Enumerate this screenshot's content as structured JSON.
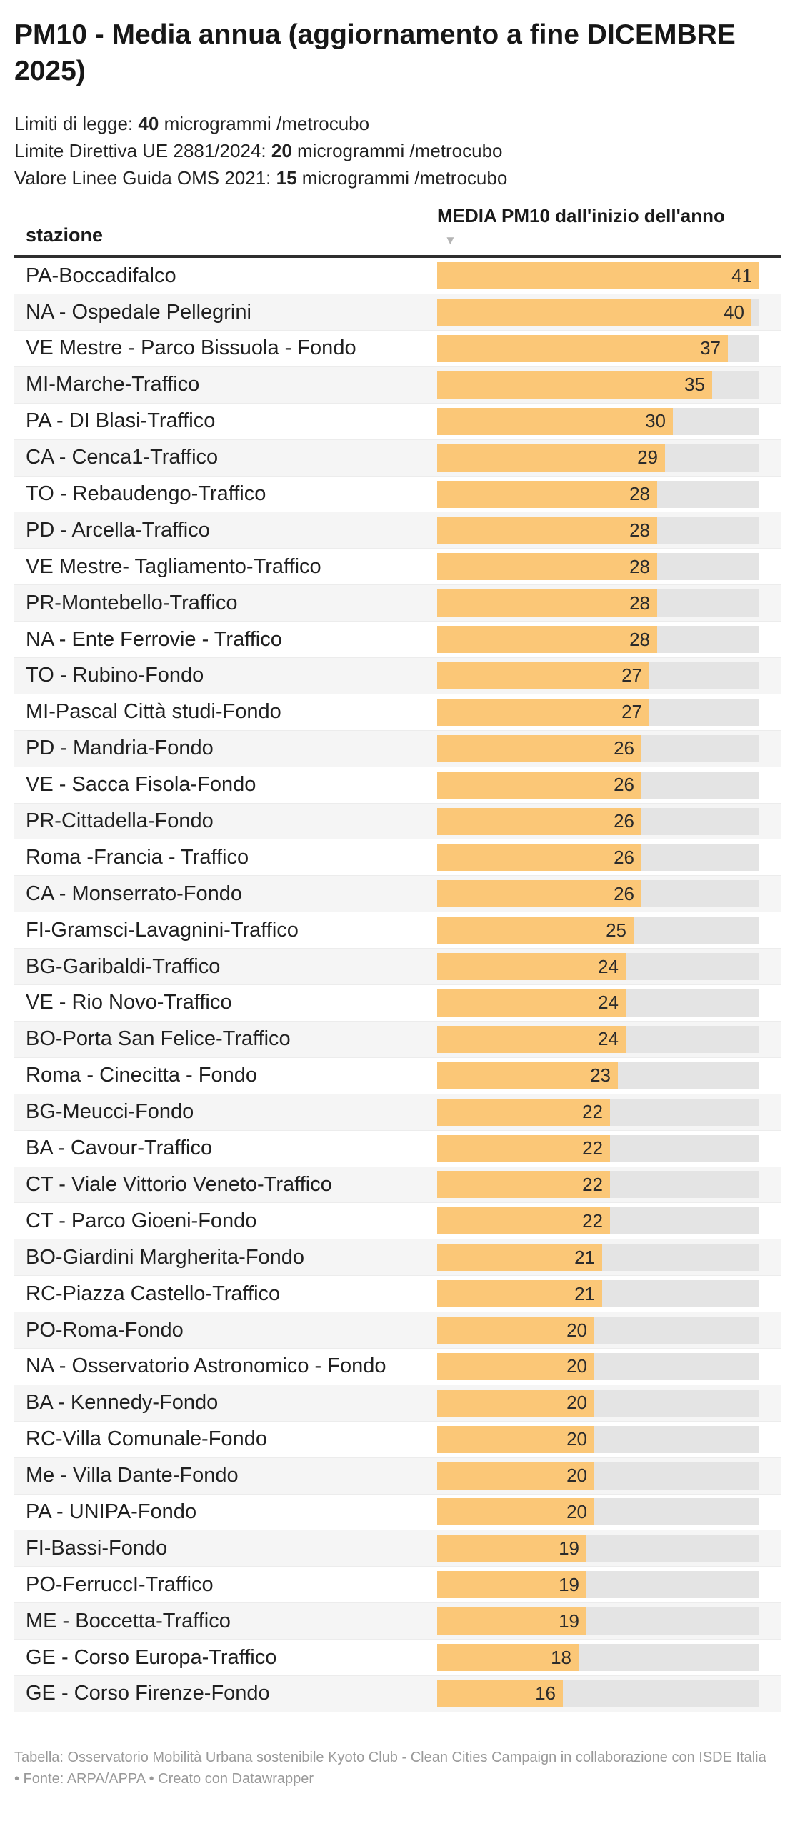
{
  "header": {
    "title": "PM10 - Media annua (aggiornamento a fine DICEMBRE 2025)",
    "description_lines": [
      {
        "prefix": "Limiti di legge: ",
        "bold": "40",
        "suffix": " microgrammi /metrocubo"
      },
      {
        "prefix": "Limite Direttiva UE 2881/2024: ",
        "bold": "20",
        "suffix": " microgrammi /metrocubo"
      },
      {
        "prefix": "Valore Linee Guida OMS 2021: ",
        "bold": "15",
        "suffix": " microgrammi /metrocubo"
      }
    ]
  },
  "table": {
    "station_column_label": "stazione",
    "value_column_label": "MEDIA PM10 dall'inizio dell'anno",
    "sort_icon": "▼"
  },
  "chart_data": {
    "type": "bar",
    "title": "PM10 - Media annua (aggiornamento a fine DICEMBRE 2025)",
    "xlabel": "MEDIA PM10 dall'inizio dell'anno",
    "ylabel": "stazione",
    "xlim": [
      0,
      41
    ],
    "xmax": 41,
    "bar_color": "#fbc777",
    "track_color": "#e4e4e4",
    "grid": false,
    "legend": false,
    "categories": [
      "PA-Boccadifalco",
      "NA - Ospedale Pellegrini",
      "VE Mestre - Parco Bissuola - Fondo",
      "MI-Marche-Traffico",
      "PA - DI Blasi-Traffico",
      "CA - Cenca1-Traffico",
      "TO - Rebaudengo-Traffico",
      "PD - Arcella-Traffico",
      "VE Mestre- Tagliamento-Traffico",
      "PR-Montebello-Traffico",
      "NA - Ente Ferrovie - Traffico",
      "TO - Rubino-Fondo",
      "MI-Pascal Città studi-Fondo",
      "PD - Mandria-Fondo",
      "VE - Sacca Fisola-Fondo",
      "PR-Cittadella-Fondo",
      "Roma -Francia - Traffico",
      "CA - Monserrato-Fondo",
      "FI-Gramsci-Lavagnini-Traffico",
      "BG-Garibaldi-Traffico",
      "VE - Rio Novo-Traffico",
      "BO-Porta San Felice-Traffico",
      "Roma - Cinecitta - Fondo",
      "BG-Meucci-Fondo",
      "BA - Cavour-Traffico",
      "CT - Viale Vittorio Veneto-Traffico",
      "CT - Parco Gioeni-Fondo",
      "BO-Giardini Margherita-Fondo",
      "RC-Piazza Castello-Traffico",
      "PO-Roma-Fondo",
      "NA - Osservatorio Astronomico - Fondo",
      "BA - Kennedy-Fondo",
      "RC-Villa Comunale-Fondo",
      "Me - Villa Dante-Fondo",
      "PA - UNIPA-Fondo",
      "FI-Bassi-Fondo",
      "PO-FerruccI-Traffico",
      "ME - Boccetta-Traffico",
      "GE - Corso Europa-Traffico",
      "GE - Corso Firenze-Fondo"
    ],
    "values": [
      41,
      40,
      37,
      35,
      30,
      29,
      28,
      28,
      28,
      28,
      28,
      27,
      27,
      26,
      26,
      26,
      26,
      26,
      25,
      24,
      24,
      24,
      23,
      22,
      22,
      22,
      22,
      21,
      21,
      20,
      20,
      20,
      20,
      20,
      20,
      19,
      19,
      19,
      18,
      16
    ]
  },
  "footer": {
    "credit": "Tabella: Osservatorio Mobilità Urbana sostenibile Kyoto Club - Clean Cities Campaign in collaborazione con ISDE Italia • Fonte: ARPA/APPA • Creato con Datawrapper"
  }
}
